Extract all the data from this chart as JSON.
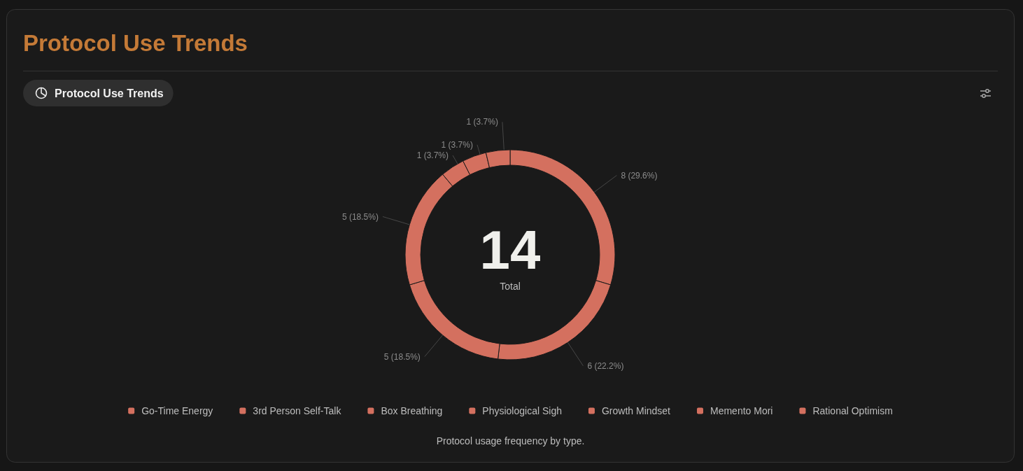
{
  "chart_data": {
    "type": "donut",
    "title": "Protocol Use Trends",
    "subtitle": "Protocol Use Trends",
    "categories": [
      "Go-Time Energy",
      "3rd Person Self-Talk",
      "Box Breathing",
      "Physiological Sigh",
      "Growth Mindset",
      "Memento Mori",
      "Rational Optimism"
    ],
    "values": [
      8,
      6,
      5,
      5,
      1,
      1,
      1
    ],
    "colors": [
      "#d4705f",
      "#d4705f",
      "#d4705f",
      "#d4705f",
      "#d4705f",
      "#d4705f",
      "#d4705f"
    ],
    "value_labels": [
      "8 (29.6%)",
      "6 (22.2%)",
      "5 (18.5%)",
      "5 (18.5%)",
      "1 (3.7%)",
      "1 (3.7%)",
      "1 (3.7%)"
    ],
    "legend": "bottom",
    "annotations": [
      "14",
      "Total",
      "Protocol usage frequency by type."
    ]
  }
}
